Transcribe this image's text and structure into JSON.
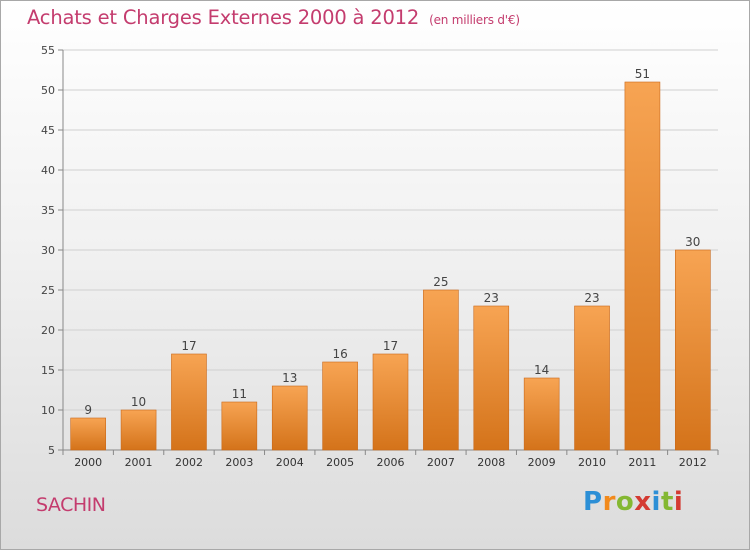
{
  "title": "Achats et Charges Externes 2000 à 2012",
  "subtitle": "(en milliers d'€)",
  "commune": "SACHIN",
  "logo": {
    "letters": [
      "P",
      "r",
      "o",
      "x",
      "i",
      "t",
      "i"
    ],
    "colors": [
      "#2c8fd6",
      "#f28a1c",
      "#84b832",
      "#d43a32",
      "#2c8fd6",
      "#84b832",
      "#d43a32"
    ]
  },
  "colors": {
    "accent": "#c43c6e",
    "bar_top": "#f7a453",
    "bar_bottom": "#d4731a",
    "grid": "#d0d0d0"
  },
  "chart_data": {
    "type": "bar",
    "title": "Achats et Charges Externes 2000 à 2012",
    "subtitle": "(en milliers d'€)",
    "categories": [
      "2000",
      "2001",
      "2002",
      "2003",
      "2004",
      "2005",
      "2006",
      "2007",
      "2008",
      "2009",
      "2010",
      "2011",
      "2012"
    ],
    "values": [
      9,
      10,
      17,
      11,
      13,
      16,
      17,
      25,
      23,
      14,
      23,
      51,
      30
    ],
    "ylim": [
      5,
      55
    ],
    "yticks": [
      5,
      10,
      15,
      20,
      25,
      30,
      35,
      40,
      45,
      50,
      55
    ],
    "grid": true,
    "data_labels": true
  }
}
